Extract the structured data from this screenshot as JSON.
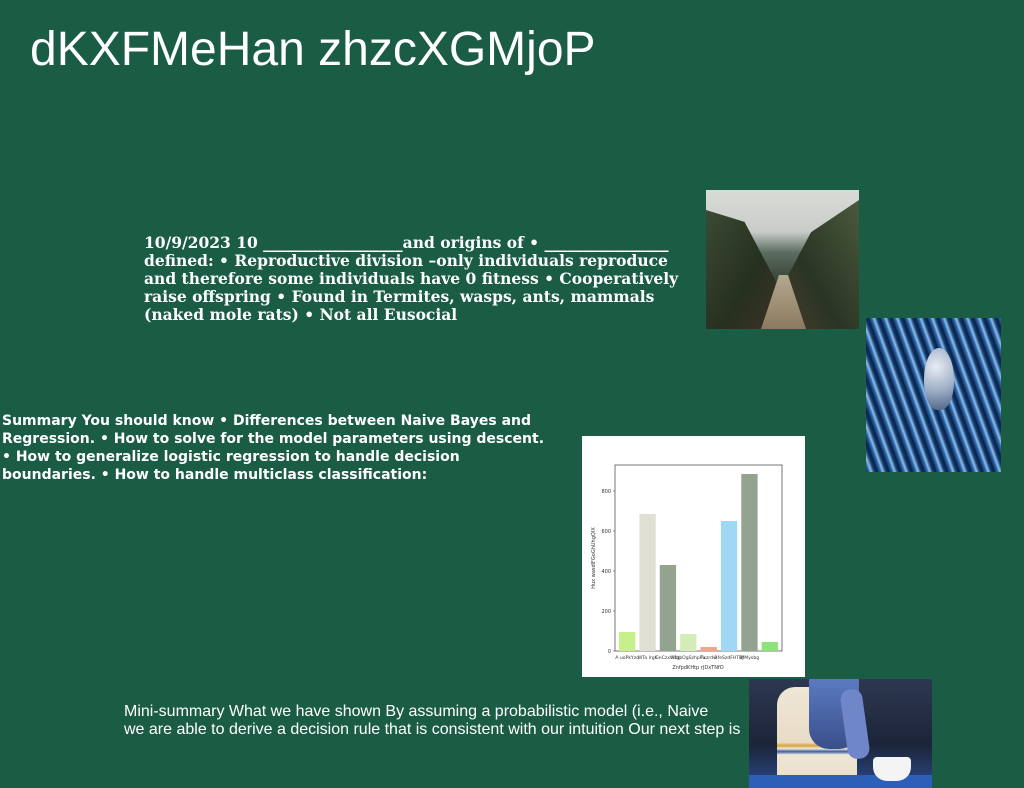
{
  "slide": {
    "title": "dKXFMeHan zhzcXGMjoP",
    "text_block_1": "10/9/2023 10 __________________and origins of • ________________ defined: • Reproductive division –only individuals reproduce and therefore some individuals have 0 fitness • Cooperatively raise offspring • Found in Termites, wasps, ants, mammals (naked mole rats) • Not all Eusocial",
    "text_block_2": "Summary You should know • Differences between Naive Bayes and Regression. • How to solve for the model parameters using descent. • How to generalize logistic regression to handle decision boundaries. • How to handle multiclass classification:",
    "text_block_3_line_1": "Mini-summary What we have shown By assuming a probabilistic model (i.e., Naive",
    "text_block_3_line_2": "we are able to derive a decision rule that is consistent with our intuition Our next step is"
  },
  "images": {
    "canyon": "canyon-river-photo",
    "bird": "bird-on-blue-wires-photo",
    "woman": "woman-with-coffee-photo"
  },
  "chart_data": {
    "type": "bar",
    "categories": [
      "A uoPkYzo",
      "WTa Irgk",
      "GnCzxWbtl",
      "HfgpOgSzhpPu",
      "Txzrdw",
      "RfeSzdFHTBJ",
      "WMysbg",
      ""
    ],
    "values": [
      95,
      685,
      430,
      85,
      20,
      650,
      885,
      45
    ],
    "colors": [
      "#c5f08a",
      "#dfdfd4",
      "#93a38f",
      "#d4ecb6",
      "#f8a28a",
      "#9fd8f5",
      "#93a38f",
      "#8ee27a"
    ],
    "xlabel": "ZnfpdKHtp rJDxTNfO",
    "ylabel": "Hux wasdlFGoGhUhgQIX",
    "yticks": [
      0,
      200,
      400,
      600,
      800
    ],
    "ylim": [
      0,
      930
    ]
  }
}
